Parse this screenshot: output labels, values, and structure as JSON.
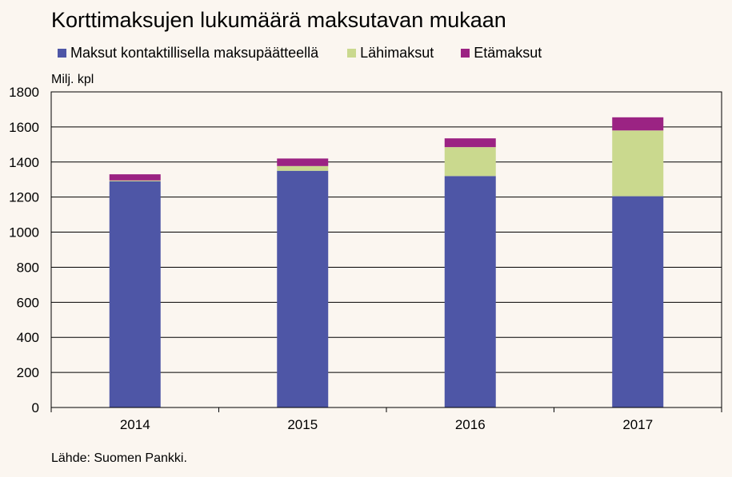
{
  "title": "Korttimaksujen lukumäärä maksutavan mukaan",
  "source": "Lähde: Suomen Pankki.",
  "chart_data": {
    "type": "bar",
    "stacked": true,
    "title": "Korttimaksujen lukumäärä maksutavan mukaan",
    "ylabel": "Milj. kpl",
    "ylim": [
      0,
      1800
    ],
    "yticks": [
      0,
      200,
      400,
      600,
      800,
      1000,
      1200,
      1400,
      1600,
      1800
    ],
    "grid": true,
    "legend_position": "top",
    "categories": [
      "2014",
      "2015",
      "2016",
      "2017"
    ],
    "series": [
      {
        "name": "Maksut kontaktillisella maksupäätteellä",
        "color": "#4e56a6",
        "values": [
          1290,
          1350,
          1320,
          1205
        ]
      },
      {
        "name": "Lähimaksut",
        "color": "#cad98e",
        "values": [
          5,
          27,
          165,
          375
        ]
      },
      {
        "name": "Etämaksut",
        "color": "#9b2383",
        "values": [
          35,
          43,
          50,
          75
        ]
      }
    ]
  }
}
